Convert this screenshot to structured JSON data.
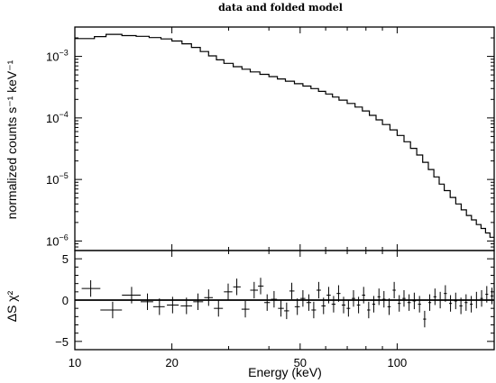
{
  "chart_data": [
    {
      "type": "line",
      "panel": "spectrum",
      "title": "data and folded model",
      "ylabel": "normalized counts s⁻¹ keV⁻¹",
      "xlabel": "",
      "x_scale": "log",
      "y_scale": "log",
      "xlim": [
        10,
        200
      ],
      "ylim": [
        7e-07,
        0.003
      ],
      "y_ticks": [
        {
          "value": 0.001,
          "base": "10",
          "exp": "−3"
        },
        {
          "value": 0.0001,
          "base": "10",
          "exp": "−4"
        },
        {
          "value": 1e-05,
          "base": "10",
          "exp": "−5"
        },
        {
          "value": 1e-06,
          "base": "10",
          "exp": "−6"
        }
      ],
      "model_step": [
        [
          10.0,
          0.00195
        ],
        [
          11.5,
          0.0021
        ],
        [
          12.5,
          0.00228
        ],
        [
          14.0,
          0.00218
        ],
        [
          15.5,
          0.00212
        ],
        [
          17.0,
          0.00202
        ],
        [
          18.5,
          0.00192
        ],
        [
          20.0,
          0.00178
        ],
        [
          21.5,
          0.0016
        ],
        [
          23.0,
          0.0014
        ],
        [
          24.5,
          0.0012
        ],
        [
          26.0,
          0.00102
        ],
        [
          27.5,
          0.00088
        ],
        [
          29.0,
          0.00077
        ],
        [
          31.0,
          0.00068
        ],
        [
          33.0,
          0.00062
        ],
        [
          35.0,
          0.00056
        ],
        [
          37.5,
          0.00051
        ],
        [
          40.0,
          0.00047
        ],
        [
          42.5,
          0.00043
        ],
        [
          45.0,
          0.000395
        ],
        [
          48.0,
          0.00036
        ],
        [
          51.0,
          0.00033
        ],
        [
          54.0,
          0.0003
        ],
        [
          57.0,
          0.00027
        ],
        [
          60.0,
          0.000245
        ],
        [
          63.0,
          0.000218
        ],
        [
          66.0,
          0.000195
        ],
        [
          70.0,
          0.000172
        ],
        [
          74.0,
          0.00015
        ],
        [
          78.0,
          0.00013
        ],
        [
          82.0,
          0.00011
        ],
        [
          86.0,
          9.3e-05
        ],
        [
          90.0,
          7.8e-05
        ],
        [
          95.0,
          6.4e-05
        ],
        [
          100.0,
          5.2e-05
        ],
        [
          105.0,
          4.1e-05
        ],
        [
          110.0,
          3.2e-05
        ],
        [
          115.0,
          2.5e-05
        ],
        [
          120.0,
          1.9e-05
        ],
        [
          125.0,
          1.45e-05
        ],
        [
          130.0,
          1.1e-05
        ],
        [
          135.0,
          8.4e-06
        ],
        [
          140.0,
          6.6e-06
        ],
        [
          146.0,
          5.1e-06
        ],
        [
          152.0,
          4e-06
        ],
        [
          158.0,
          3.2e-06
        ],
        [
          164.0,
          2.6e-06
        ],
        [
          170.0,
          2.2e-06
        ],
        [
          176.0,
          1.85e-06
        ],
        [
          182.0,
          1.6e-06
        ],
        [
          188.0,
          1.35e-06
        ],
        [
          194.0,
          1.15e-06
        ],
        [
          199.0,
          1.15e-06
        ]
      ]
    },
    {
      "type": "scatter",
      "panel": "residuals",
      "ylabel": "ΔS χ²",
      "xlabel": "Energy (keV)",
      "x_scale": "log",
      "xlim": [
        10,
        200
      ],
      "ylim": [
        -6,
        6
      ],
      "y_ticks": [
        "5",
        "0",
        "−5"
      ],
      "x_ticks": [
        {
          "value": 10,
          "label": "10"
        },
        {
          "value": 20,
          "label": "20"
        },
        {
          "value": 50,
          "label": "50"
        },
        {
          "value": 100,
          "label": "100"
        }
      ],
      "points": [
        {
          "x": 11.2,
          "xlo": 10.5,
          "xhi": 12.0,
          "y": 1.4,
          "yerr": 1.0
        },
        {
          "x": 13.1,
          "xlo": 12.0,
          "xhi": 14.0,
          "y": -1.2,
          "yerr": 1.0
        },
        {
          "x": 15.0,
          "xlo": 14.0,
          "xhi": 16.0,
          "y": 0.6,
          "yerr": 1.0
        },
        {
          "x": 16.8,
          "xlo": 16.0,
          "xhi": 17.5,
          "y": -0.2,
          "yerr": 1.0
        },
        {
          "x": 18.3,
          "xlo": 17.5,
          "xhi": 19.0,
          "y": -0.8,
          "yerr": 1.0
        },
        {
          "x": 20.1,
          "xlo": 19.3,
          "xhi": 21.0,
          "y": -0.6,
          "yerr": 1.0
        },
        {
          "x": 22.2,
          "xlo": 21.3,
          "xhi": 23.1,
          "y": -0.7,
          "yerr": 1.0
        },
        {
          "x": 24.1,
          "xlo": 23.3,
          "xhi": 25.0,
          "y": -0.2,
          "yerr": 1.0
        },
        {
          "x": 26.0,
          "xlo": 25.2,
          "xhi": 26.8,
          "y": 0.3,
          "yerr": 1.0
        },
        {
          "x": 27.9,
          "xlo": 27.0,
          "xhi": 28.8,
          "y": -1.0,
          "yerr": 1.0
        },
        {
          "x": 29.9,
          "xlo": 29.0,
          "xhi": 30.8,
          "y": 1.0,
          "yerr": 1.0
        },
        {
          "x": 31.8,
          "xlo": 31.0,
          "xhi": 32.7,
          "y": 1.6,
          "yerr": 1.0
        },
        {
          "x": 33.8,
          "xlo": 32.9,
          "xhi": 34.8,
          "y": -1.1,
          "yerr": 1.0
        },
        {
          "x": 36.0,
          "xlo": 35.0,
          "xhi": 37.0,
          "y": 1.2,
          "yerr": 1.0
        },
        {
          "x": 37.7,
          "xlo": 37.0,
          "xhi": 38.5,
          "y": 1.7,
          "yerr": 1.0
        },
        {
          "x": 39.5,
          "xlo": 38.7,
          "xhi": 40.3,
          "y": -0.3,
          "yerr": 1.0
        },
        {
          "x": 41.5,
          "xlo": 40.6,
          "xhi": 42.4,
          "y": 0.1,
          "yerr": 1.0
        },
        {
          "x": 43.6,
          "xlo": 42.7,
          "xhi": 44.5,
          "y": -1.0,
          "yerr": 1.0
        },
        {
          "x": 45.4,
          "xlo": 44.6,
          "xhi": 46.2,
          "y": -1.3,
          "yerr": 1.0
        },
        {
          "x": 47.1,
          "xlo": 46.3,
          "xhi": 48.0,
          "y": 1.1,
          "yerr": 1.0
        },
        {
          "x": 49.0,
          "xlo": 48.1,
          "xhi": 49.9,
          "y": -0.8,
          "yerr": 1.0
        },
        {
          "x": 51.0,
          "xlo": 50.1,
          "xhi": 51.9,
          "y": 0.2,
          "yerr": 1.0
        },
        {
          "x": 53.2,
          "xlo": 52.3,
          "xhi": 54.1,
          "y": -0.3,
          "yerr": 1.0
        },
        {
          "x": 55.1,
          "xlo": 54.2,
          "xhi": 56.0,
          "y": -1.2,
          "yerr": 1.0
        },
        {
          "x": 57.1,
          "xlo": 56.2,
          "xhi": 58.0,
          "y": 1.2,
          "yerr": 1.0
        },
        {
          "x": 59.1,
          "xlo": 58.2,
          "xhi": 60.0,
          "y": -0.7,
          "yerr": 1.0
        },
        {
          "x": 61.3,
          "xlo": 60.4,
          "xhi": 62.2,
          "y": 0.6,
          "yerr": 1.0
        },
        {
          "x": 63.5,
          "xlo": 62.6,
          "xhi": 64.4,
          "y": -0.5,
          "yerr": 1.0
        },
        {
          "x": 65.8,
          "xlo": 64.9,
          "xhi": 66.7,
          "y": 0.8,
          "yerr": 1.0
        },
        {
          "x": 68.2,
          "xlo": 67.3,
          "xhi": 69.1,
          "y": -0.6,
          "yerr": 1.0
        },
        {
          "x": 70.6,
          "xlo": 69.7,
          "xhi": 71.5,
          "y": -1.0,
          "yerr": 1.0
        },
        {
          "x": 73.2,
          "xlo": 72.3,
          "xhi": 74.1,
          "y": 0.2,
          "yerr": 1.0
        },
        {
          "x": 75.9,
          "xlo": 75.0,
          "xhi": 76.8,
          "y": -0.6,
          "yerr": 1.0
        },
        {
          "x": 78.7,
          "xlo": 77.8,
          "xhi": 79.6,
          "y": 0.6,
          "yerr": 1.0
        },
        {
          "x": 81.6,
          "xlo": 80.7,
          "xhi": 82.5,
          "y": -1.2,
          "yerr": 1.0
        },
        {
          "x": 84.6,
          "xlo": 83.7,
          "xhi": 85.5,
          "y": -0.5,
          "yerr": 1.0
        },
        {
          "x": 87.8,
          "xlo": 86.9,
          "xhi": 88.7,
          "y": 0.4,
          "yerr": 1.0
        },
        {
          "x": 91.0,
          "xlo": 90.0,
          "xhi": 92.0,
          "y": 0.1,
          "yerr": 1.0
        },
        {
          "x": 94.4,
          "xlo": 93.3,
          "xhi": 95.5,
          "y": -0.8,
          "yerr": 1.0
        },
        {
          "x": 97.9,
          "xlo": 96.8,
          "xhi": 99.0,
          "y": 1.2,
          "yerr": 1.0
        },
        {
          "x": 101.5,
          "xlo": 100.4,
          "xhi": 102.6,
          "y": -0.4,
          "yerr": 1.0
        },
        {
          "x": 105.0,
          "xlo": 103.8,
          "xhi": 106.2,
          "y": 0.2,
          "yerr": 1.0
        },
        {
          "x": 108.9,
          "xlo": 107.6,
          "xhi": 110.2,
          "y": -0.3,
          "yerr": 1.0
        },
        {
          "x": 113.0,
          "xlo": 111.7,
          "xhi": 114.3,
          "y": -0.1,
          "yerr": 1.0
        },
        {
          "x": 117.3,
          "xlo": 116.0,
          "xhi": 118.6,
          "y": -0.5,
          "yerr": 1.0
        },
        {
          "x": 121.7,
          "xlo": 120.4,
          "xhi": 123.0,
          "y": -2.3,
          "yerr": 1.0
        },
        {
          "x": 126.2,
          "xlo": 124.9,
          "xhi": 127.5,
          "y": -0.3,
          "yerr": 1.0
        },
        {
          "x": 131.0,
          "xlo": 129.6,
          "xhi": 132.4,
          "y": 0.4,
          "yerr": 1.0
        },
        {
          "x": 136.0,
          "xlo": 134.5,
          "xhi": 137.5,
          "y": 0.0,
          "yerr": 1.0
        },
        {
          "x": 141.1,
          "xlo": 139.6,
          "xhi": 142.6,
          "y": 0.8,
          "yerr": 1.0
        },
        {
          "x": 146.4,
          "xlo": 144.9,
          "xhi": 147.9,
          "y": -0.4,
          "yerr": 1.0
        },
        {
          "x": 151.9,
          "xlo": 150.3,
          "xhi": 153.5,
          "y": -0.1,
          "yerr": 1.0
        },
        {
          "x": 157.7,
          "xlo": 156.0,
          "xhi": 159.4,
          "y": -0.7,
          "yerr": 1.0
        },
        {
          "x": 163.6,
          "xlo": 161.9,
          "xhi": 165.3,
          "y": -0.3,
          "yerr": 1.0
        },
        {
          "x": 169.8,
          "xlo": 168.1,
          "xhi": 171.5,
          "y": -0.5,
          "yerr": 1.0
        },
        {
          "x": 176.2,
          "xlo": 174.4,
          "xhi": 178.0,
          "y": 0.0,
          "yerr": 1.0
        },
        {
          "x": 182.8,
          "xlo": 181.0,
          "xhi": 184.6,
          "y": 0.2,
          "yerr": 1.0
        },
        {
          "x": 189.7,
          "xlo": 187.8,
          "xhi": 191.6,
          "y": 0.7,
          "yerr": 1.0
        },
        {
          "x": 196.8,
          "xlo": 194.8,
          "xhi": 198.8,
          "y": 0.5,
          "yerr": 1.0
        }
      ]
    }
  ]
}
